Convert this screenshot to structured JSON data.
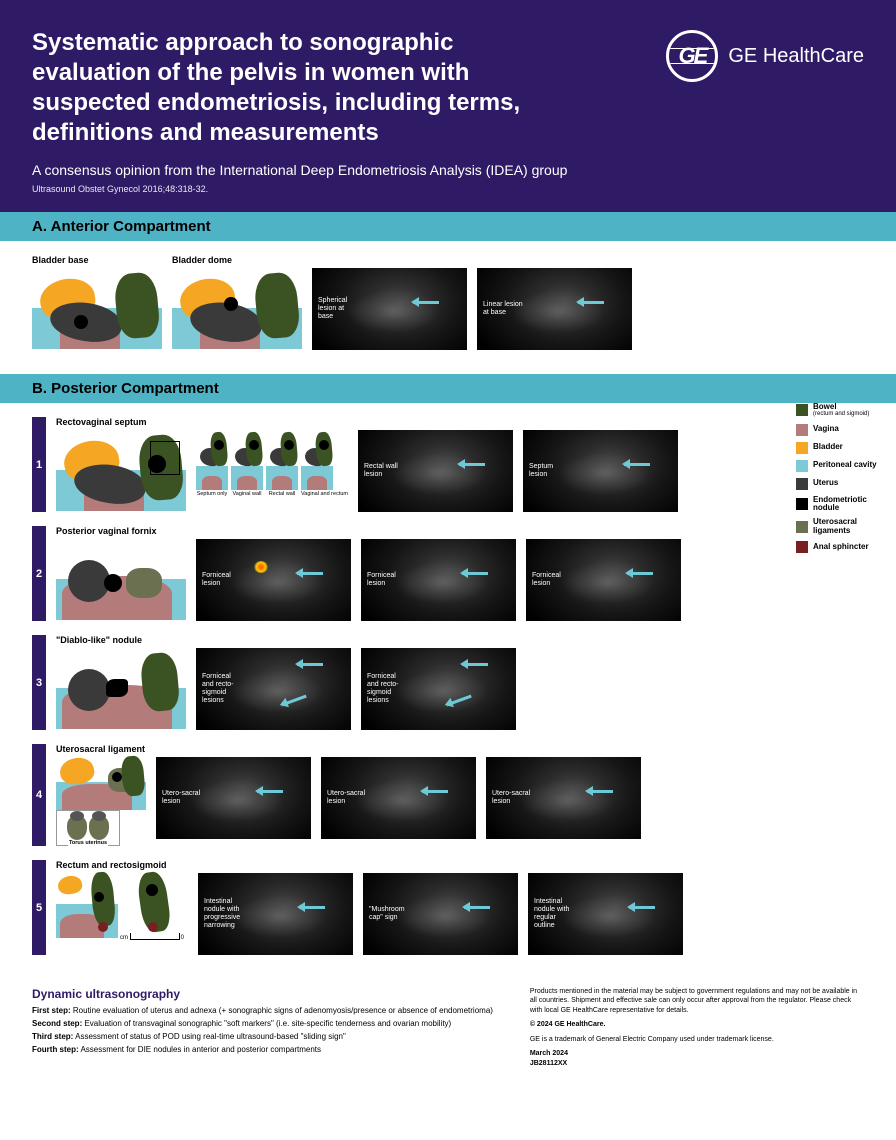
{
  "header": {
    "title": "Systematic approach to sonographic evaluation of the pelvis in women with suspected endometriosis, including terms, definitions and measurements",
    "subtitle": "A consensus opinion from the International Deep Endometriosis Analysis (IDEA) group",
    "citation": "Ultrasound Obstet Gynecol 2016;48:318-32.",
    "brand_name": "GE HealthCare",
    "brand_monogram": "GE"
  },
  "colors": {
    "header_bg": "#2f1a66",
    "bar_bg": "#4eb3c4",
    "bladder": "#f5a623",
    "uterus": "#3a3a3a",
    "bowel": "#3b5323",
    "vagina": "#b47b7b",
    "peritoneal": "#7ec9d6",
    "nodule": "#000000",
    "usl": "#6b7050",
    "sphincter": "#7a1f1f",
    "arrow": "#6ec9d6"
  },
  "section_a": {
    "title": "A. Anterior Compartment",
    "diagrams": [
      {
        "label": "Bladder base"
      },
      {
        "label": "Bladder dome"
      }
    ],
    "ultrasounds": [
      {
        "label": "Spherical lesion at base"
      },
      {
        "label": "Linear lesion at base"
      }
    ]
  },
  "section_b": {
    "title": "B. Posterior Compartment",
    "rows": [
      {
        "num": "1",
        "diag_label": "Rectovaginal septum",
        "variants": [
          "Septum only",
          "Vaginal wall",
          "Rectal wall",
          "Vaginal and rectum"
        ],
        "ultrasounds": [
          {
            "label": "Rectal wall lesion"
          },
          {
            "label": "Septum lesion"
          }
        ]
      },
      {
        "num": "2",
        "diag_label": "Posterior vaginal fornix",
        "ultrasounds": [
          {
            "label": "Forniceal lesion",
            "color": true
          },
          {
            "label": "Forniceal lesion"
          },
          {
            "label": "Forniceal lesion"
          }
        ]
      },
      {
        "num": "3",
        "diag_label": "\"Diablo-like\" nodule",
        "ultrasounds": [
          {
            "label": "Forniceal and recto-sigmoid lesions",
            "double_arrow": true
          },
          {
            "label": "Forniceal and recto-sigmoid lesions",
            "double_arrow": true
          }
        ]
      },
      {
        "num": "4",
        "diag_label": "Uterosacral ligament",
        "torus_label": "Torus uterinus",
        "ultrasounds": [
          {
            "label": "Utero-sacral lesion"
          },
          {
            "label": "Utero-sacral lesion"
          },
          {
            "label": "Utero-sacral lesion"
          }
        ]
      },
      {
        "num": "5",
        "diag_label": "Rectum and rectosigmoid",
        "ruler_left": "cm",
        "ruler_right": "0",
        "ultrasounds": [
          {
            "label": "Intestinal nodule with progressive narrowing"
          },
          {
            "label": "\"Mushroom cap\" sign"
          },
          {
            "label": "Intestinal nodule with regular outline"
          }
        ]
      }
    ],
    "legend": [
      {
        "color": "#3b5323",
        "label": "Bowel",
        "sub": "(rectum and sigmoid)"
      },
      {
        "color": "#b47b7b",
        "label": "Vagina"
      },
      {
        "color": "#f5a623",
        "label": "Bladder"
      },
      {
        "color": "#7ec9d6",
        "label": "Peritoneal cavity"
      },
      {
        "color": "#3a3a3a",
        "label": "Uterus"
      },
      {
        "color": "#000000",
        "label": "Endometriotic nodule"
      },
      {
        "color": "#6b7050",
        "label": "Uterosacral ligaments"
      },
      {
        "color": "#7a1f1f",
        "label": "Anal sphincter"
      }
    ]
  },
  "footer": {
    "dyn_title": "Dynamic ultrasonography",
    "steps": [
      {
        "b": "First step:",
        "t": " Routine evaluation of uterus and adnexa (+ sonographic signs of adenomyosis/presence or absence of endometrioma)"
      },
      {
        "b": "Second step:",
        "t": " Evaluation of transvaginal sonographic \"soft markers\" (i.e. site-specific tenderness and ovarian mobility)"
      },
      {
        "b": "Third step:",
        "t": " Assessment of status of POD using real-time ultrasound-based \"sliding sign\""
      },
      {
        "b": "Fourth step:",
        "t": " Assessment for DIE nodules in anterior and posterior compartments"
      }
    ],
    "legal1": "Products mentioned in the material may be subject to government regulations and may not be available in all countries. Shipment and effective sale can only occur after approval from the regulator. Please check with local GE HealthCare representative for details.",
    "copyright": "© 2024 GE HealthCare.",
    "trademark": "GE is a trademark of General Electric Company used under trademark license.",
    "date": "March 2024",
    "code": "JB28112XX"
  }
}
